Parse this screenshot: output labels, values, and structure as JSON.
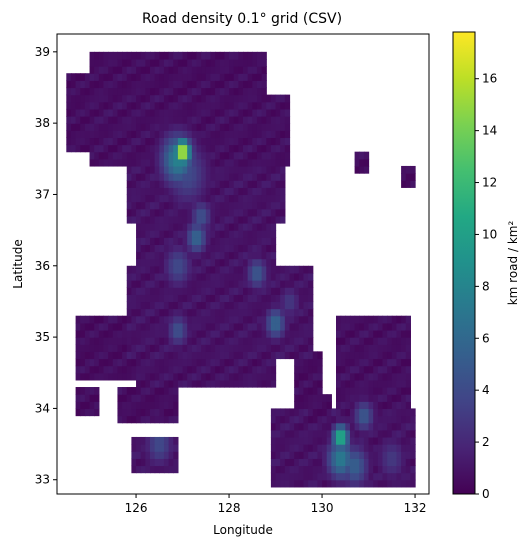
{
  "chart_data": {
    "type": "heatmap",
    "title": "Road density 0.1° grid (CSV)",
    "xlabel": "Longitude",
    "ylabel": "Latitude",
    "xlim": [
      124.3,
      132.3
    ],
    "ylim": [
      32.8,
      39.25
    ],
    "xticks": [
      126,
      128,
      130,
      132
    ],
    "yticks": [
      33,
      34,
      35,
      36,
      37,
      38,
      39
    ],
    "grid": false,
    "cell_size_deg": 0.1,
    "colormap": "viridis",
    "colorbar": {
      "label": "km road / km²",
      "range": [
        0,
        17.8
      ],
      "ticks": [
        0,
        2,
        4,
        6,
        8,
        10,
        12,
        14,
        16
      ]
    },
    "background_value": 0.6,
    "regions": [
      {
        "lon": [
          125.0,
          127.0
        ],
        "lat": [
          38.4,
          39.0
        ],
        "value": 0.6
      },
      {
        "lon": [
          124.5,
          125.0
        ],
        "lat": [
          37.6,
          38.7
        ],
        "value": 0.6
      },
      {
        "lon": [
          125.0,
          129.3
        ],
        "lat": [
          37.4,
          38.4
        ],
        "value": 0.7
      },
      {
        "lon": [
          127.0,
          128.8
        ],
        "lat": [
          38.4,
          39.0
        ],
        "value": 0.6
      },
      {
        "lon": [
          125.8,
          129.2
        ],
        "lat": [
          36.6,
          37.4
        ],
        "value": 0.9
      },
      {
        "lon": [
          126.0,
          129.0
        ],
        "lat": [
          36.0,
          36.6
        ],
        "value": 0.9
      },
      {
        "lon": [
          125.8,
          129.8
        ],
        "lat": [
          34.7,
          36.0
        ],
        "value": 0.9
      },
      {
        "lon": [
          126.0,
          129.0
        ],
        "lat": [
          34.3,
          34.7
        ],
        "value": 0.8
      },
      {
        "lon": [
          124.7,
          126.2
        ],
        "lat": [
          34.4,
          35.3
        ],
        "value": 0.6
      },
      {
        "lon": [
          124.7,
          125.2
        ],
        "lat": [
          33.9,
          34.3
        ],
        "value": 0.6
      },
      {
        "lon": [
          125.6,
          126.9
        ],
        "lat": [
          33.8,
          34.3
        ],
        "value": 0.6
      },
      {
        "lon": [
          129.4,
          130.0
        ],
        "lat": [
          34.0,
          34.8
        ],
        "value": 0.6
      },
      {
        "lon": [
          129.7,
          130.2
        ],
        "lat": [
          33.8,
          34.2
        ],
        "value": 0.6
      },
      {
        "lon": [
          128.9,
          132.0
        ],
        "lat": [
          32.9,
          34.0
        ],
        "value": 0.9
      },
      {
        "lon": [
          130.3,
          131.9
        ],
        "lat": [
          34.0,
          35.3
        ],
        "value": 0.7
      },
      {
        "lon": [
          125.9,
          126.9
        ],
        "lat": [
          33.1,
          33.6
        ],
        "value": 1.0
      },
      {
        "lon": [
          130.7,
          131.0
        ],
        "lat": [
          37.3,
          37.6
        ],
        "value": 0.6
      },
      {
        "lon": [
          131.7,
          132.0
        ],
        "lat": [
          37.1,
          37.4
        ],
        "value": 0.6
      }
    ],
    "hotspots": [
      {
        "lon": 127.0,
        "lat": 37.6,
        "value": 17.6,
        "radius": 0.12
      },
      {
        "lon": 126.9,
        "lat": 37.5,
        "value": 8.0,
        "radius": 0.25
      },
      {
        "lon": 127.1,
        "lat": 37.3,
        "value": 4.0,
        "radius": 0.3
      },
      {
        "lon": 127.3,
        "lat": 36.4,
        "value": 6.0,
        "radius": 0.15
      },
      {
        "lon": 127.4,
        "lat": 36.7,
        "value": 4.5,
        "radius": 0.15
      },
      {
        "lon": 126.9,
        "lat": 36.0,
        "value": 4.0,
        "radius": 0.2
      },
      {
        "lon": 128.6,
        "lat": 35.9,
        "value": 5.0,
        "radius": 0.15
      },
      {
        "lon": 129.0,
        "lat": 35.2,
        "value": 6.0,
        "radius": 0.15
      },
      {
        "lon": 126.9,
        "lat": 35.1,
        "value": 4.5,
        "radius": 0.15
      },
      {
        "lon": 129.3,
        "lat": 35.5,
        "value": 3.0,
        "radius": 0.15
      },
      {
        "lon": 130.4,
        "lat": 33.6,
        "value": 12.0,
        "radius": 0.12
      },
      {
        "lon": 130.4,
        "lat": 33.3,
        "value": 7.5,
        "radius": 0.2
      },
      {
        "lon": 130.7,
        "lat": 33.2,
        "value": 5.5,
        "radius": 0.2
      },
      {
        "lon": 130.9,
        "lat": 33.9,
        "value": 5.0,
        "radius": 0.15
      },
      {
        "lon": 126.5,
        "lat": 33.5,
        "value": 4.0,
        "radius": 0.2
      },
      {
        "lon": 131.5,
        "lat": 33.3,
        "value": 3.0,
        "radius": 0.2
      }
    ]
  }
}
